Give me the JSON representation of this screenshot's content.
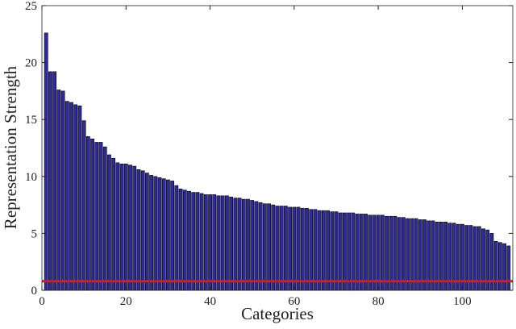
{
  "chart_data": {
    "type": "bar",
    "x_label": "Categories",
    "y_label": "Representation Strength",
    "x": [
      1,
      2,
      3,
      4,
      5,
      6,
      7,
      8,
      9,
      10,
      11,
      12,
      13,
      14,
      15,
      16,
      17,
      18,
      19,
      20,
      21,
      22,
      23,
      24,
      25,
      26,
      27,
      28,
      29,
      30,
      31,
      32,
      33,
      34,
      35,
      36,
      37,
      38,
      39,
      40,
      41,
      42,
      43,
      44,
      45,
      46,
      47,
      48,
      49,
      50,
      51,
      52,
      53,
      54,
      55,
      56,
      57,
      58,
      59,
      60,
      61,
      62,
      63,
      64,
      65,
      66,
      67,
      68,
      69,
      70,
      71,
      72,
      73,
      74,
      75,
      76,
      77,
      78,
      79,
      80,
      81,
      82,
      83,
      84,
      85,
      86,
      87,
      88,
      89,
      90,
      91,
      92,
      93,
      94,
      95,
      96,
      97,
      98,
      99,
      100,
      101,
      102,
      103,
      104,
      105,
      106,
      107,
      108,
      109,
      110,
      111
    ],
    "values": [
      22.6,
      19.2,
      19.2,
      17.6,
      17.5,
      16.6,
      16.5,
      16.3,
      16.2,
      14.9,
      13.5,
      13.3,
      13.0,
      13.0,
      12.6,
      11.9,
      11.6,
      11.2,
      11.1,
      11.1,
      11.0,
      10.9,
      10.6,
      10.5,
      10.3,
      10.1,
      10.0,
      9.9,
      9.8,
      9.7,
      9.6,
      9.2,
      8.9,
      8.8,
      8.7,
      8.6,
      8.6,
      8.5,
      8.4,
      8.4,
      8.4,
      8.3,
      8.3,
      8.3,
      8.2,
      8.1,
      8.1,
      8.0,
      8.0,
      7.9,
      7.8,
      7.7,
      7.6,
      7.6,
      7.5,
      7.4,
      7.4,
      7.4,
      7.3,
      7.3,
      7.3,
      7.2,
      7.2,
      7.1,
      7.1,
      7.0,
      7.0,
      7.0,
      6.9,
      6.9,
      6.8,
      6.8,
      6.8,
      6.8,
      6.7,
      6.7,
      6.7,
      6.6,
      6.6,
      6.6,
      6.6,
      6.5,
      6.5,
      6.5,
      6.4,
      6.4,
      6.3,
      6.3,
      6.3,
      6.2,
      6.2,
      6.1,
      6.1,
      6.0,
      6.0,
      6.0,
      5.9,
      5.9,
      5.8,
      5.8,
      5.7,
      5.7,
      5.6,
      5.6,
      5.4,
      5.3,
      5.0,
      4.3,
      4.2,
      4.1,
      3.9
    ],
    "color": "#2e2a96",
    "threshold": {
      "value": 0.8,
      "color": "#e8141c"
    },
    "xlim": [
      0,
      112
    ],
    "xticks": [
      0,
      20,
      40,
      60,
      80,
      100
    ],
    "ylim": [
      0,
      25
    ],
    "yticks": [
      0,
      5,
      10,
      15,
      20,
      25
    ],
    "grid": false
  }
}
